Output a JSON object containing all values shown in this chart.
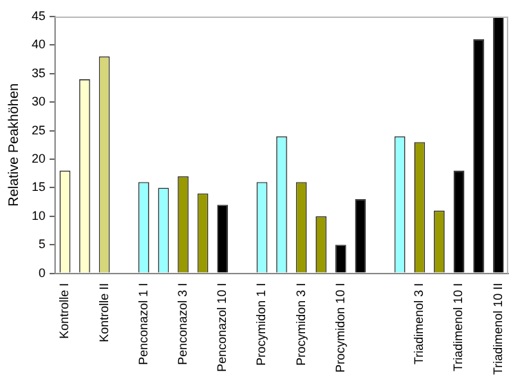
{
  "chart_data": {
    "type": "bar",
    "ylabel": "Relative Peakhöhen",
    "categories": [
      "Kontrolle I",
      null,
      "Kontrolle II",
      null,
      "Penconazol 1 I",
      null,
      "Penconazol 3 I",
      null,
      "Penconazol 10 I",
      null,
      "Procymidon 1 I",
      null,
      "Procymidon 3 I",
      null,
      "Procymidon 10 I",
      null,
      null,
      null,
      "Triadimenol 3 I",
      null,
      "Triadimenol 10 I",
      null,
      "Triadimenol 10 II"
    ],
    "values": [
      18,
      34,
      38,
      null,
      16,
      15,
      17,
      14,
      12,
      null,
      16,
      24,
      16,
      10,
      5,
      13,
      null,
      24,
      23,
      11,
      18,
      41,
      45
    ],
    "colors": [
      "#ffffcc",
      "#ffffcc",
      "#d6d67a",
      "#ffffff",
      "#99ffff",
      "#99ffff",
      "#999900",
      "#999900",
      "#000000",
      "#ffffff",
      "#99ffff",
      "#99ffff",
      "#999900",
      "#999900",
      "#000000",
      "#000000",
      "#ffffff",
      "#99ffff",
      "#999900",
      "#999900",
      "#000000",
      "#000000",
      "#000000"
    ],
    "ylim": [
      0,
      45
    ],
    "yticks": [
      0,
      5,
      10,
      15,
      20,
      25,
      30,
      35,
      40,
      45
    ],
    "grid": false,
    "legend": false
  }
}
